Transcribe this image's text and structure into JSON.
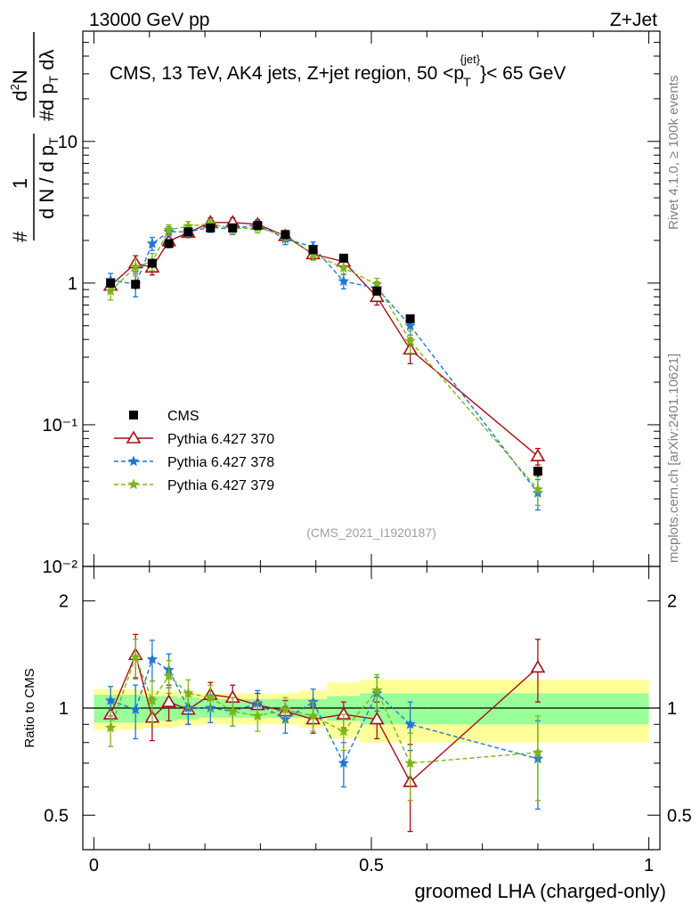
{
  "header": {
    "left": "13000 GeV pp",
    "right": "Z+Jet"
  },
  "side_labels": {
    "rivet": "Rivet 4.1.0, ≥ 100k events",
    "mcplots": "mcplots.cern.ch [arXiv:2401.10621]"
  },
  "chart_data": [
    {
      "type": "line",
      "panel": "main",
      "scale": "log",
      "title_part1": "CMS, 13 TeV, AK4 jets, Z+jet region, 50 <p",
      "title_sup": "{jet}",
      "title_sub": "T",
      "title_part2": "}< 65 GeV",
      "watermark": "(CMS_2021_I1920187)",
      "xlim": [
        -0.02,
        1.02
      ],
      "ylim": [
        0.01,
        60
      ],
      "y_ticks": [
        {
          "value": 10,
          "label": "10"
        },
        {
          "value": 1,
          "label": "1"
        },
        {
          "value": 0.1,
          "label": "10⁻¹"
        },
        {
          "value": 0.01,
          "label": "10⁻²"
        }
      ],
      "ylabel": {
        "prefix": "#",
        "frac1_num": "1",
        "frac1_den": "d N / d p",
        "frac1_den_sub": "T",
        "hash": "#",
        "frac2_num_a": "d",
        "frac2_num_sup": "2",
        "frac2_num_b": "N",
        "frac2_den_a": "d p",
        "frac2_den_sub": "T",
        "frac2_den_b": " dλ"
      },
      "x": [
        0.03,
        0.075,
        0.105,
        0.135,
        0.17,
        0.21,
        0.25,
        0.295,
        0.345,
        0.395,
        0.45,
        0.51,
        0.57,
        0.8
      ],
      "data": {
        "name": "CMS",
        "values": [
          1.0,
          0.98,
          1.38,
          1.9,
          2.3,
          2.45,
          2.45,
          2.55,
          2.2,
          1.72,
          1.5,
          0.88,
          0.56,
          0.047
        ],
        "errors": [
          0.07,
          0.08,
          0.1,
          0.12,
          0.12,
          0.12,
          0.12,
          0.12,
          0.1,
          0.1,
          0.1,
          0.06,
          0.04,
          0.004
        ]
      },
      "series": [
        {
          "name": "Pythia 6.427 370",
          "color": "#a50f15",
          "dash": "solid",
          "marker": "open-triangle",
          "values": [
            0.96,
            1.38,
            1.29,
            1.98,
            2.27,
            2.68,
            2.68,
            2.6,
            2.15,
            1.6,
            1.42,
            0.8,
            0.34,
            0.06
          ],
          "errors": [
            0.1,
            0.18,
            0.15,
            0.2,
            0.18,
            0.2,
            0.2,
            0.2,
            0.15,
            0.12,
            0.12,
            0.1,
            0.07,
            0.008
          ]
        },
        {
          "name": "Pythia 6.427 378",
          "color": "#1f77d4",
          "dash": "dashed",
          "marker": "star",
          "values": [
            1.05,
            0.98,
            1.9,
            2.3,
            2.3,
            2.48,
            2.4,
            2.6,
            2.05,
            1.8,
            1.03,
            0.92,
            0.5,
            0.033
          ],
          "errors": [
            0.12,
            0.18,
            0.2,
            0.2,
            0.2,
            0.2,
            0.2,
            0.2,
            0.18,
            0.15,
            0.12,
            0.1,
            0.07,
            0.008
          ]
        },
        {
          "name": "Pythia 6.427 379",
          "color": "#7cb518",
          "dash": "dashed",
          "marker": "star",
          "values": [
            0.88,
            1.3,
            1.42,
            2.38,
            2.52,
            2.62,
            2.42,
            2.46,
            2.18,
            1.6,
            1.28,
            0.98,
            0.39,
            0.035
          ],
          "errors": [
            0.12,
            0.18,
            0.2,
            0.2,
            0.2,
            0.2,
            0.2,
            0.2,
            0.18,
            0.15,
            0.12,
            0.1,
            0.07,
            0.008
          ]
        }
      ],
      "legend": {
        "position": "bottom-left",
        "entries": [
          "CMS",
          "Pythia 6.427 370",
          "Pythia 6.427 378",
          "Pythia 6.427 379"
        ]
      }
    },
    {
      "type": "line",
      "panel": "ratio",
      "scale": "log",
      "ylabel": "Ratio to CMS",
      "xlabel": "groomed LHA (charged-only)",
      "xlim": [
        -0.02,
        1.02
      ],
      "ylim": [
        0.4,
        2.5
      ],
      "x_ticks": [
        {
          "value": 0,
          "label": "0"
        },
        {
          "value": 0.5,
          "label": "0.5"
        },
        {
          "value": 1,
          "label": "1"
        }
      ],
      "y_ticks": [
        {
          "value": 2,
          "label": "2"
        },
        {
          "value": 1,
          "label": "1"
        },
        {
          "value": 0.5,
          "label": "0.5"
        }
      ],
      "bands": {
        "edges": [
          0,
          0.06,
          0.09,
          0.12,
          0.15,
          0.19,
          0.23,
          0.27,
          0.32,
          0.37,
          0.42,
          0.48,
          0.54,
          0.6,
          1.0
        ],
        "green_half": [
          0.09,
          0.09,
          0.08,
          0.08,
          0.07,
          0.06,
          0.06,
          0.06,
          0.06,
          0.06,
          0.08,
          0.1,
          0.1,
          0.1
        ],
        "yellow_half": [
          0.13,
          0.13,
          0.12,
          0.12,
          0.11,
          0.1,
          0.1,
          0.1,
          0.1,
          0.12,
          0.18,
          0.2,
          0.2,
          0.2
        ]
      },
      "x": [
        0.03,
        0.075,
        0.105,
        0.135,
        0.17,
        0.21,
        0.25,
        0.295,
        0.345,
        0.395,
        0.45,
        0.51,
        0.57,
        0.8
      ],
      "series": [
        {
          "name": "Pythia 6.427 370",
          "color": "#a50f15",
          "dash": "solid",
          "marker": "open-triangle",
          "values": [
            0.96,
            1.41,
            0.94,
            1.04,
            0.99,
            1.09,
            1.07,
            1.02,
            0.98,
            0.93,
            0.96,
            0.93,
            0.62,
            1.3
          ],
          "errors": [
            0.09,
            0.2,
            0.13,
            0.12,
            0.09,
            0.09,
            0.09,
            0.08,
            0.07,
            0.08,
            0.08,
            0.11,
            0.17,
            0.26
          ]
        },
        {
          "name": "Pythia 6.427 378",
          "color": "#1f77d4",
          "dash": "dashed",
          "marker": "star",
          "values": [
            1.05,
            0.99,
            1.37,
            1.28,
            1.0,
            1.0,
            0.98,
            1.03,
            0.93,
            1.04,
            0.7,
            1.1,
            0.9,
            0.72
          ],
          "errors": [
            0.1,
            0.17,
            0.18,
            0.14,
            0.1,
            0.09,
            0.09,
            0.09,
            0.08,
            0.09,
            0.1,
            0.12,
            0.14,
            0.2
          ]
        },
        {
          "name": "Pythia 6.427 379",
          "color": "#7cb518",
          "dash": "dashed",
          "marker": "star",
          "values": [
            0.88,
            1.39,
            1.05,
            1.23,
            1.1,
            1.07,
            0.98,
            0.95,
            0.99,
            0.95,
            0.86,
            1.12,
            0.7,
            0.75
          ],
          "errors": [
            0.1,
            0.17,
            0.14,
            0.13,
            0.1,
            0.09,
            0.09,
            0.09,
            0.08,
            0.09,
            0.1,
            0.12,
            0.15,
            0.2
          ]
        }
      ]
    }
  ]
}
